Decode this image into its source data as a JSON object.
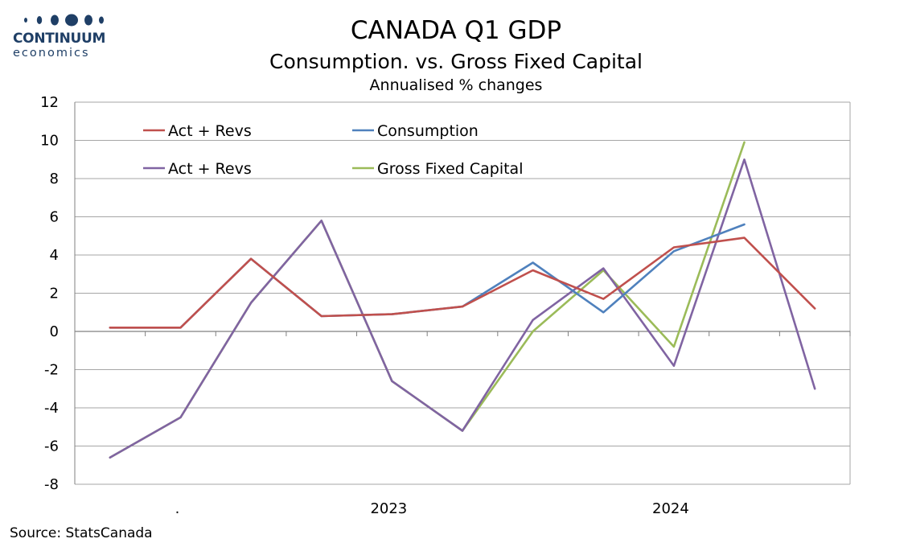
{
  "logo": {
    "name": "CONTINUUM",
    "sub": "economics",
    "color": "#1f3f66"
  },
  "header": {
    "title": "CANADA Q1 GDP",
    "subtitle": "Consumption. vs. Gross Fixed Capital",
    "subsubtitle": "Annualised % changes"
  },
  "footer": {
    "source": "Source: StatsCanada"
  },
  "chart_data": {
    "type": "line",
    "title": "CANADA Q1 GDP",
    "ylim": [
      -8,
      12
    ],
    "yticks": [
      -8,
      -6,
      -4,
      -2,
      0,
      2,
      4,
      6,
      8,
      10,
      12
    ],
    "grid": true,
    "legend_position": "top-left",
    "x_labels": [
      {
        "label": ".",
        "after_point": 1
      },
      {
        "label": "2023",
        "after_point": 4
      },
      {
        "label": "2024",
        "after_point": 8
      }
    ],
    "point_count": 11,
    "series": [
      {
        "name": "Act + Revs",
        "color": "#c0504d",
        "values": [
          0.2,
          0.2,
          3.8,
          0.8,
          0.9,
          1.3,
          3.2,
          1.7,
          4.4,
          4.9,
          1.2
        ]
      },
      {
        "name": "Consumption",
        "color": "#4f81bd",
        "values": [
          0.2,
          0.2,
          3.8,
          0.8,
          0.9,
          1.3,
          3.6,
          1.0,
          4.2,
          5.6,
          null
        ]
      },
      {
        "name": "Act + Revs",
        "color": "#8064a2",
        "values": [
          -6.6,
          -4.5,
          1.5,
          5.8,
          -2.6,
          -5.2,
          0.6,
          3.3,
          -1.8,
          9.0,
          -3.0
        ]
      },
      {
        "name": "Gross Fixed Capital",
        "color": "#9bbb59",
        "values": [
          -6.6,
          -4.5,
          1.5,
          5.8,
          -2.6,
          -5.2,
          0.0,
          3.2,
          -0.8,
          9.9,
          null
        ]
      }
    ]
  }
}
